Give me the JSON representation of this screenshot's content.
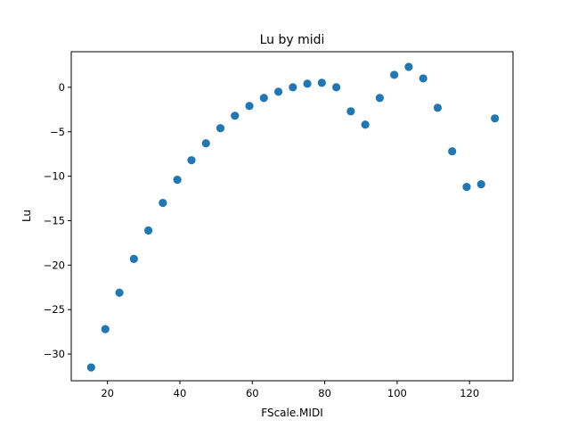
{
  "chart_data": {
    "type": "scatter",
    "title": "Lu by midi",
    "xlabel": "FScale.MIDI",
    "ylabel": "Lu",
    "xlim": [
      10,
      132
    ],
    "ylim": [
      -33,
      4
    ],
    "xticks": [
      20,
      40,
      60,
      80,
      100,
      120
    ],
    "yticks": [
      -30,
      -25,
      -20,
      -15,
      -10,
      -5,
      0
    ],
    "xtick_labels": [
      "20",
      "40",
      "60",
      "80",
      "100",
      "120"
    ],
    "ytick_labels": [
      "−30",
      "−25",
      "−20",
      "−15",
      "−10",
      "−5",
      "0"
    ],
    "grid": false,
    "color": "#1f77b4",
    "points": [
      {
        "x": 15.5,
        "y": -31.5
      },
      {
        "x": 19.4,
        "y": -27.2
      },
      {
        "x": 23.3,
        "y": -23.1
      },
      {
        "x": 27.3,
        "y": -19.3
      },
      {
        "x": 31.3,
        "y": -16.1
      },
      {
        "x": 35.3,
        "y": -13.0
      },
      {
        "x": 39.3,
        "y": -10.4
      },
      {
        "x": 43.2,
        "y": -8.2
      },
      {
        "x": 47.2,
        "y": -6.3
      },
      {
        "x": 51.2,
        "y": -4.6
      },
      {
        "x": 55.2,
        "y": -3.2
      },
      {
        "x": 59.2,
        "y": -2.1
      },
      {
        "x": 63.2,
        "y": -1.2
      },
      {
        "x": 67.2,
        "y": -0.5
      },
      {
        "x": 71.2,
        "y": 0.0
      },
      {
        "x": 75.2,
        "y": 0.4
      },
      {
        "x": 79.2,
        "y": 0.5
      },
      {
        "x": 83.2,
        "y": 0.0
      },
      {
        "x": 87.2,
        "y": -2.7
      },
      {
        "x": 91.2,
        "y": -4.2
      },
      {
        "x": 95.2,
        "y": -1.2
      },
      {
        "x": 99.2,
        "y": 1.4
      },
      {
        "x": 103.2,
        "y": 2.3
      },
      {
        "x": 107.2,
        "y": 1.0
      },
      {
        "x": 111.2,
        "y": -2.3
      },
      {
        "x": 115.2,
        "y": -7.2
      },
      {
        "x": 119.2,
        "y": -11.2
      },
      {
        "x": 123.2,
        "y": -10.9
      },
      {
        "x": 127.0,
        "y": -3.5
      }
    ]
  }
}
